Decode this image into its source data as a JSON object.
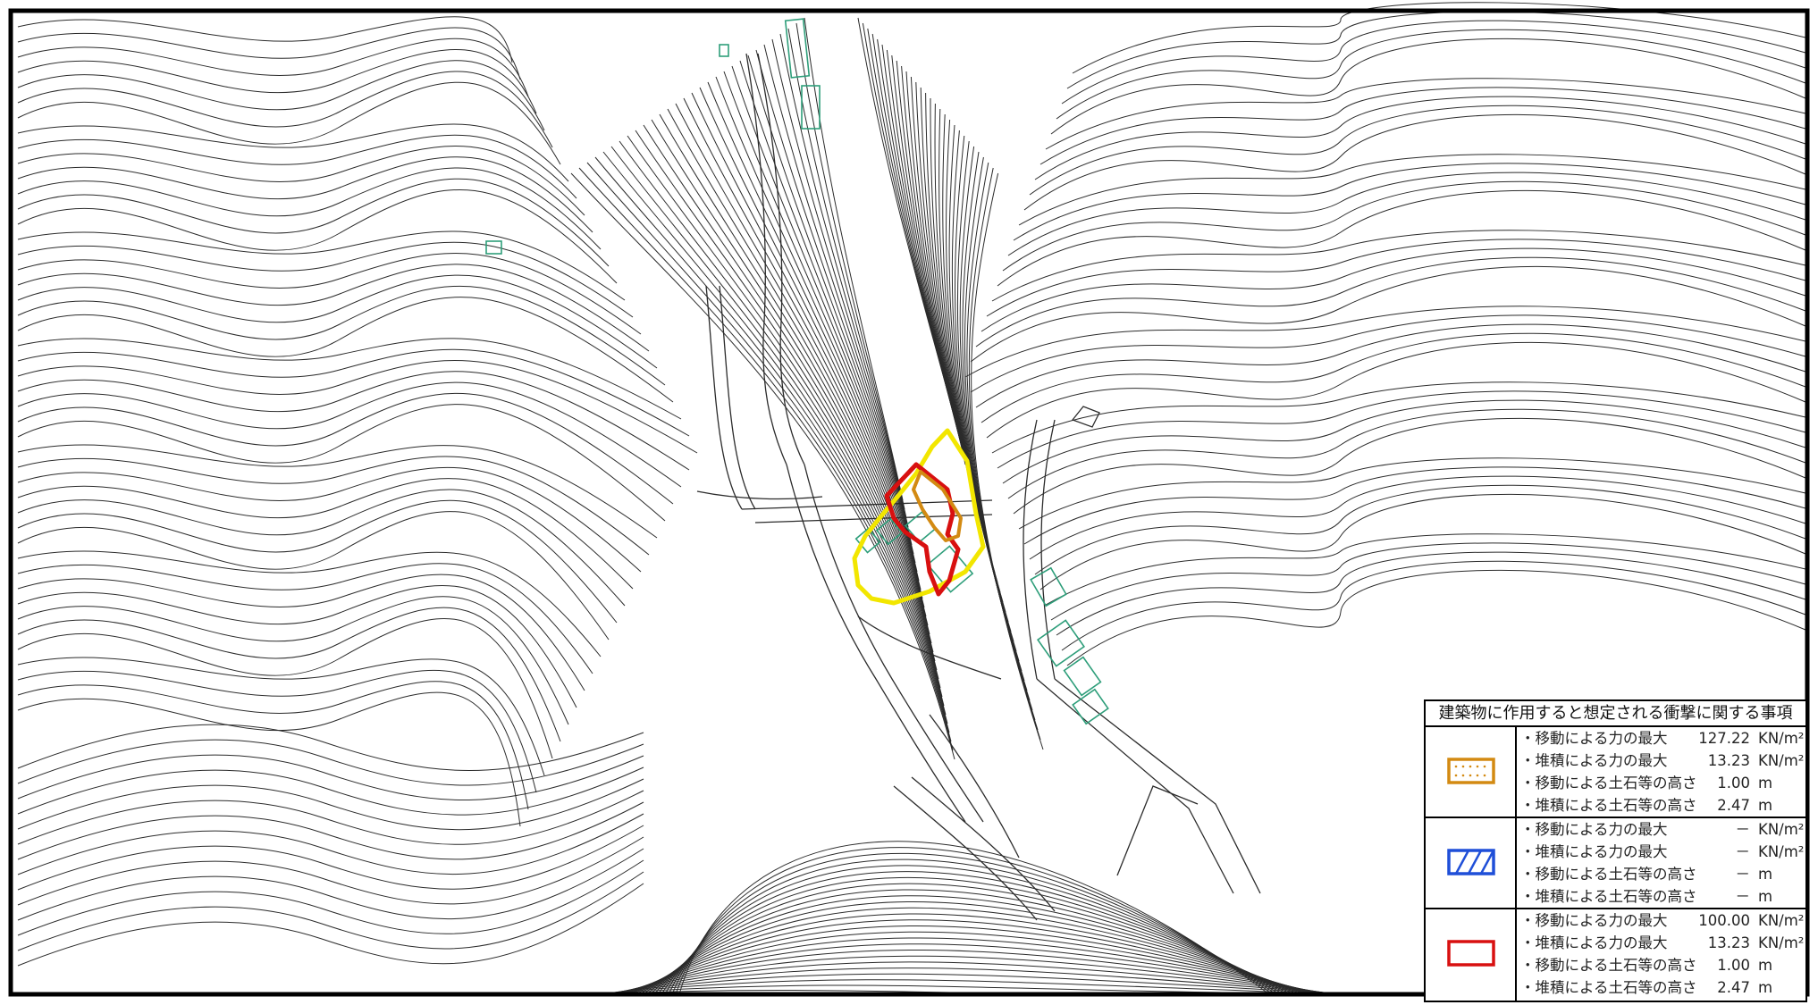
{
  "colors": {
    "contour": "#2b2b2b",
    "building": "#2e9e7a",
    "yellow_zone": "#f2e600",
    "red_zone": "#d81010",
    "orange_zone": "#d38a12",
    "blue_zone": "#1f4fd8"
  },
  "legend": {
    "title": "建築物に作用すると想定される衝撃に関する事項",
    "groups": [
      {
        "swatch_icon": "orange-dotted-rect-icon",
        "swatch_color": "#d38a12",
        "rows": [
          {
            "label": "・移動による力の最大",
            "value": "127.22",
            "unit": "KN/m²"
          },
          {
            "label": "・堆積による力の最大",
            "value": "13.23",
            "unit": "KN/m²"
          },
          {
            "label": "・移動による土石等の高さ",
            "value": "1.00",
            "unit": "m"
          },
          {
            "label": "・堆積による土石等の高さ",
            "value": "2.47",
            "unit": "m"
          }
        ]
      },
      {
        "swatch_icon": "blue-hatched-rect-icon",
        "swatch_color": "#1f4fd8",
        "rows": [
          {
            "label": "・移動による力の最大",
            "value": "－",
            "unit": "KN/m²"
          },
          {
            "label": "・堆積による力の最大",
            "value": "－",
            "unit": "KN/m²"
          },
          {
            "label": "・移動による土石等の高さ",
            "value": "－",
            "unit": "m"
          },
          {
            "label": "・堆積による土石等の高さ",
            "value": "－",
            "unit": "m"
          }
        ]
      },
      {
        "swatch_icon": "red-outline-rect-icon",
        "swatch_color": "#d81010",
        "rows": [
          {
            "label": "・移動による力の最大",
            "value": "100.00",
            "unit": "KN/m²"
          },
          {
            "label": "・堆積による力の最大",
            "value": "13.23",
            "unit": "KN/m²"
          },
          {
            "label": "・移動による土石等の高さ",
            "value": "1.00",
            "unit": "m"
          },
          {
            "label": "・堆積による土石等の高さ",
            "value": "2.47",
            "unit": "m"
          }
        ]
      }
    ]
  }
}
